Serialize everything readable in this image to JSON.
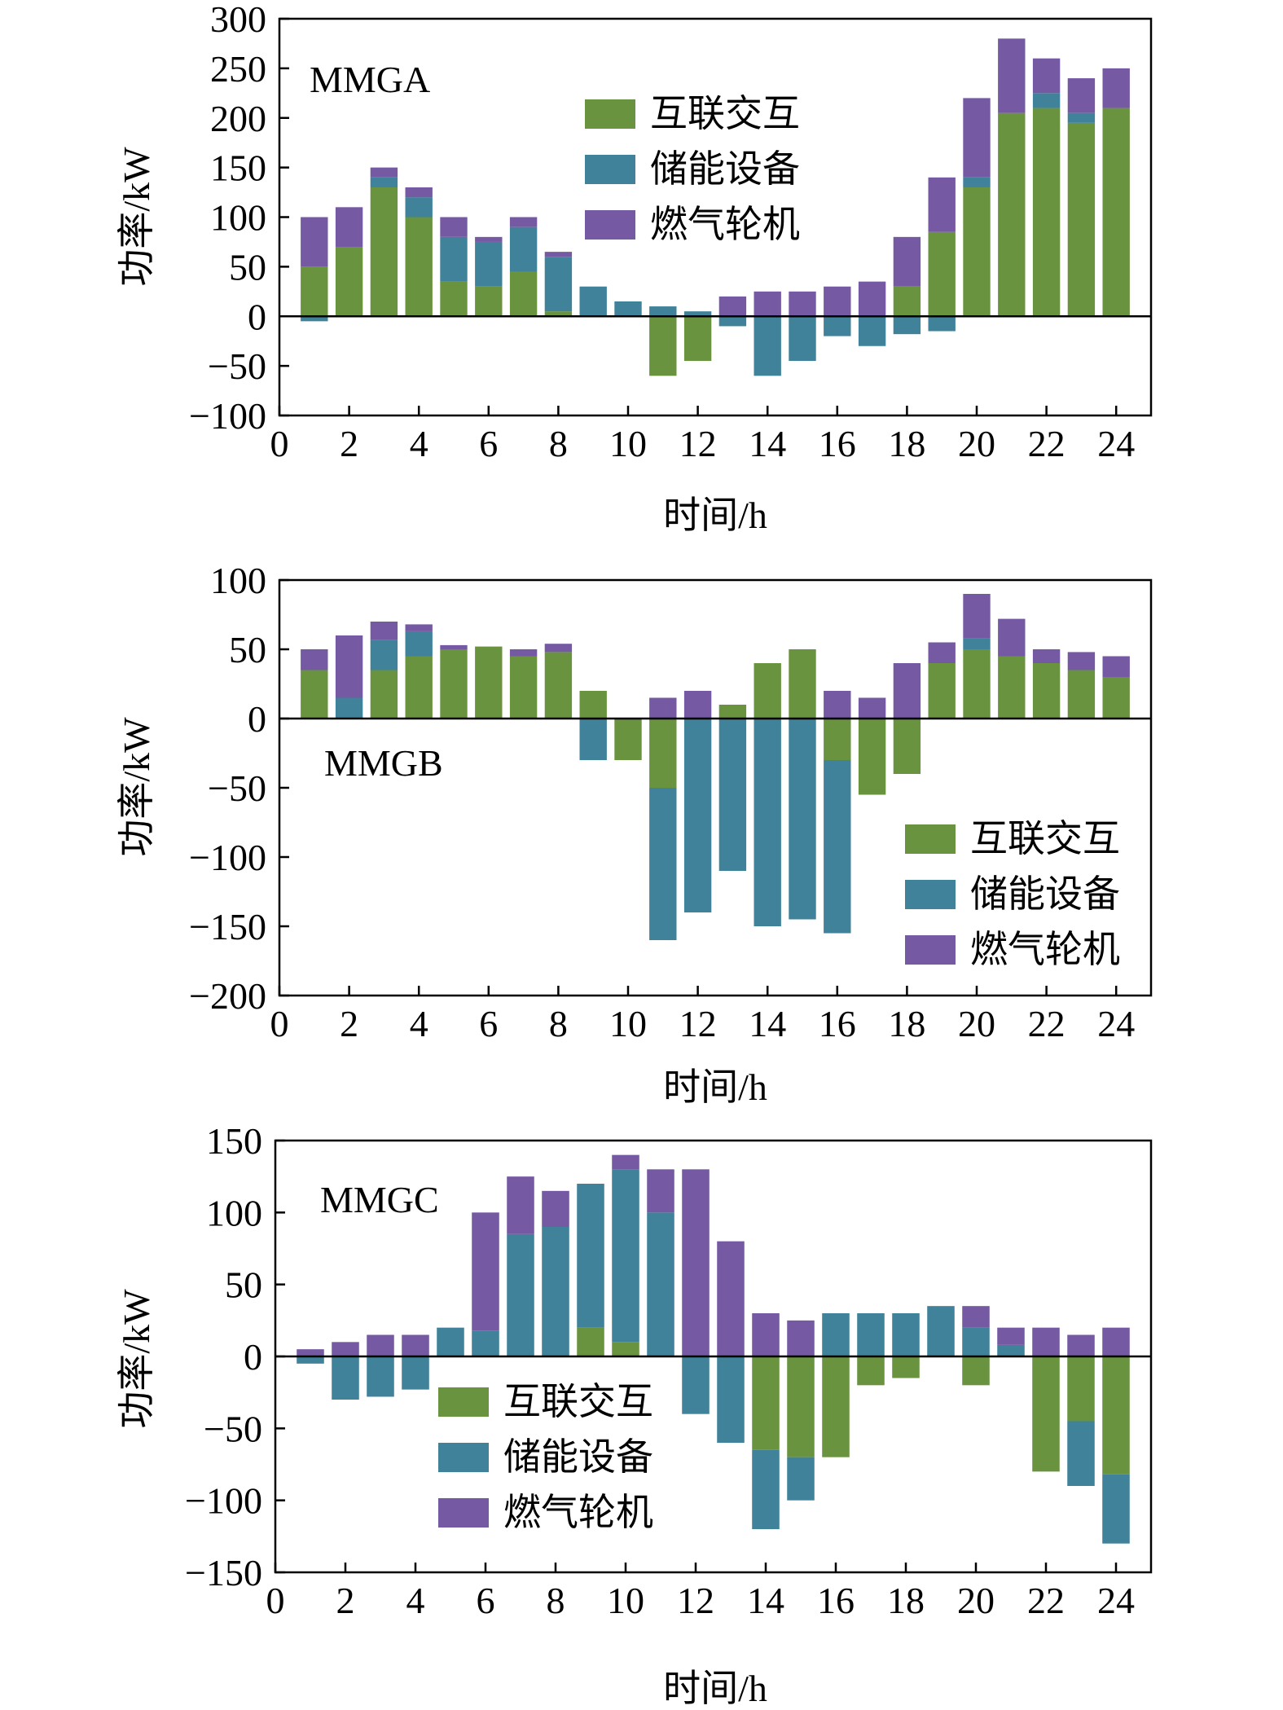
{
  "colors": {
    "exchange": "#6a9340",
    "storage": "#3f8299",
    "turbine": "#7559a3"
  },
  "chart_data": [
    {
      "type": "bar",
      "stacked": true,
      "title": "MMGA",
      "xlabel": "时间/h",
      "ylabel": "功率/kW",
      "xlim": [
        0,
        25
      ],
      "ylim": [
        -100,
        300
      ],
      "xticks": [
        0,
        2,
        4,
        6,
        8,
        10,
        12,
        14,
        16,
        18,
        20,
        22,
        24
      ],
      "yticks": [
        -100,
        -50,
        0,
        50,
        100,
        150,
        200,
        250,
        300
      ],
      "legend_position": "upper-center",
      "x": [
        1,
        2,
        3,
        4,
        5,
        6,
        7,
        8,
        9,
        10,
        11,
        12,
        13,
        14,
        15,
        16,
        17,
        18,
        19,
        20,
        21,
        22,
        23,
        24
      ],
      "series": [
        {
          "name": "互联交互",
          "color_key": "exchange",
          "values": [
            50,
            70,
            130,
            100,
            35,
            30,
            45,
            5,
            0,
            0,
            -60,
            -45,
            0,
            0,
            0,
            0,
            0,
            30,
            85,
            130,
            205,
            210,
            195,
            210
          ]
        },
        {
          "name": "储能设备",
          "color_key": "storage",
          "values": [
            -5,
            0,
            10,
            20,
            45,
            45,
            45,
            55,
            30,
            15,
            10,
            5,
            -10,
            -60,
            -45,
            -20,
            -30,
            -18,
            -15,
            10,
            0,
            15,
            10,
            0
          ]
        },
        {
          "name": "燃气轮机",
          "color_key": "turbine",
          "values": [
            50,
            40,
            10,
            10,
            20,
            5,
            10,
            5,
            0,
            0,
            0,
            0,
            20,
            25,
            25,
            30,
            35,
            50,
            55,
            80,
            75,
            35,
            35,
            40
          ]
        }
      ]
    },
    {
      "type": "bar",
      "stacked": true,
      "title": "MMGB",
      "xlabel": "时间/h",
      "ylabel": "功率/kW",
      "xlim": [
        0,
        25
      ],
      "ylim": [
        -200,
        100
      ],
      "xticks": [
        0,
        2,
        4,
        6,
        8,
        10,
        12,
        14,
        16,
        18,
        20,
        22,
        24
      ],
      "yticks": [
        -200,
        -150,
        -100,
        -50,
        0,
        50,
        100
      ],
      "legend_position": "lower-right",
      "x": [
        1,
        2,
        3,
        4,
        5,
        6,
        7,
        8,
        9,
        10,
        11,
        12,
        13,
        14,
        15,
        16,
        17,
        18,
        19,
        20,
        21,
        22,
        23,
        24
      ],
      "series": [
        {
          "name": "互联交互",
          "color_key": "exchange",
          "values": [
            35,
            0,
            35,
            45,
            50,
            52,
            45,
            48,
            20,
            -30,
            -50,
            0,
            10,
            40,
            50,
            -30,
            -55,
            -40,
            40,
            50,
            45,
            40,
            35,
            30
          ]
        },
        {
          "name": "储能设备",
          "color_key": "storage",
          "values": [
            0,
            15,
            22,
            18,
            0,
            0,
            0,
            0,
            -30,
            0,
            -110,
            -140,
            -110,
            -150,
            -145,
            -125,
            0,
            0,
            0,
            8,
            0,
            0,
            0,
            0
          ]
        },
        {
          "name": "燃气轮机",
          "color_key": "turbine",
          "values": [
            15,
            45,
            13,
            5,
            3,
            0,
            5,
            6,
            0,
            0,
            15,
            20,
            0,
            0,
            0,
            20,
            15,
            40,
            15,
            32,
            27,
            10,
            13,
            15
          ]
        }
      ]
    },
    {
      "type": "bar",
      "stacked": true,
      "title": "MMGC",
      "xlabel": "时间/h",
      "ylabel": "功率/kW",
      "xlim": [
        0,
        25
      ],
      "ylim": [
        -150,
        150
      ],
      "xticks": [
        0,
        2,
        4,
        6,
        8,
        10,
        12,
        14,
        16,
        18,
        20,
        22,
        24
      ],
      "yticks": [
        -150,
        -100,
        -50,
        0,
        50,
        100,
        150
      ],
      "legend_position": "lower-left",
      "x": [
        1,
        2,
        3,
        4,
        5,
        6,
        7,
        8,
        9,
        10,
        11,
        12,
        13,
        14,
        15,
        16,
        17,
        18,
        19,
        20,
        21,
        22,
        23,
        24
      ],
      "series": [
        {
          "name": "互联交互",
          "color_key": "exchange",
          "values": [
            0,
            0,
            0,
            0,
            0,
            0,
            0,
            0,
            20,
            10,
            0,
            0,
            0,
            -65,
            -70,
            -70,
            -20,
            -15,
            0,
            -20,
            0,
            -80,
            -45,
            -82
          ]
        },
        {
          "name": "储能设备",
          "color_key": "storage",
          "values": [
            -5,
            -30,
            -28,
            -23,
            20,
            18,
            85,
            90,
            100,
            120,
            100,
            -40,
            -60,
            -55,
            -30,
            30,
            30,
            30,
            35,
            20,
            8,
            0,
            -45,
            -48
          ]
        },
        {
          "name": "燃气轮机",
          "color_key": "turbine",
          "values": [
            5,
            10,
            15,
            15,
            0,
            82,
            40,
            25,
            0,
            10,
            30,
            130,
            80,
            30,
            25,
            0,
            0,
            0,
            0,
            15,
            12,
            20,
            15,
            20
          ]
        }
      ]
    }
  ]
}
